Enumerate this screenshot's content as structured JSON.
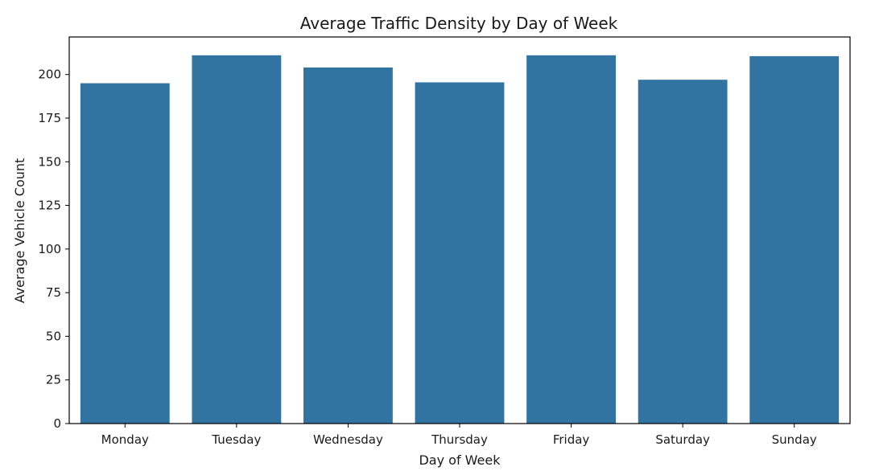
{
  "chart_data": {
    "type": "bar",
    "title": "Average Traffic Density by Day of Week",
    "xlabel": "Day of Week",
    "ylabel": "Average Vehicle Count",
    "categories": [
      "Monday",
      "Tuesday",
      "Wednesday",
      "Thursday",
      "Friday",
      "Saturday",
      "Sunday"
    ],
    "values": [
      195,
      211,
      204,
      195.5,
      211,
      197,
      210.5
    ],
    "ylim": [
      0,
      221.5
    ],
    "yticks": [
      0,
      25,
      50,
      75,
      100,
      125,
      150,
      175,
      200
    ],
    "grid": false,
    "bar_color": "#3274a1"
  }
}
